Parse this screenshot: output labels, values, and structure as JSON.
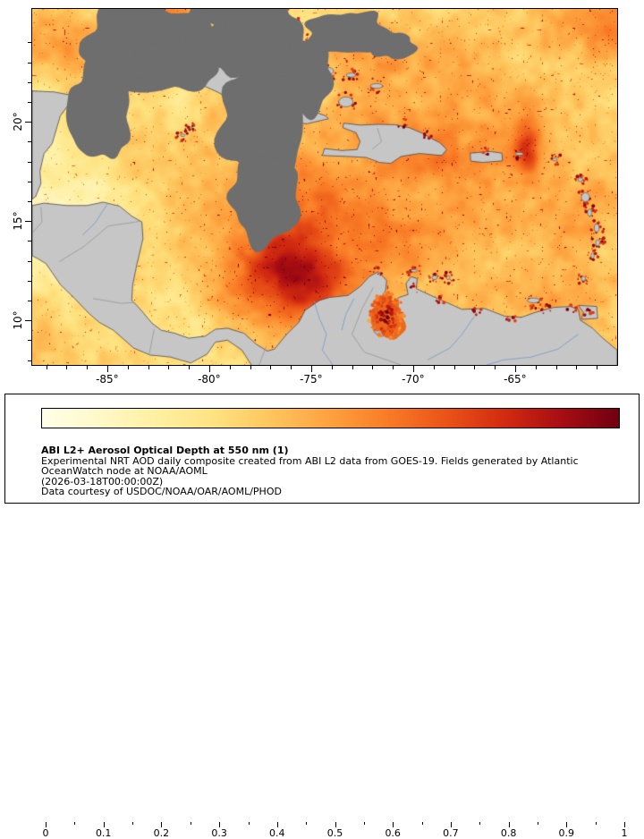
{
  "map": {
    "lat_ticks": [
      {
        "lat": 20,
        "label": "20°"
      },
      {
        "lat": 15,
        "label": "15°"
      },
      {
        "lat": 10,
        "label": "10°"
      }
    ],
    "lon_ticks": [
      {
        "lon": -85,
        "label": "-85°"
      },
      {
        "lon": -80,
        "label": "-80°"
      },
      {
        "lon": -75,
        "label": "-75°"
      },
      {
        "lon": -70,
        "label": "-70°"
      },
      {
        "lon": -65,
        "label": "-65°"
      }
    ],
    "colors": {
      "land": "#c6c6c6",
      "coast": "#4a4a4a",
      "missing": "#6e6e6e",
      "river": "#7d9ec8",
      "lake": "#a9bdd1",
      "border_line": "#8f8f8f"
    }
  },
  "colorbar": {
    "min": 0,
    "max": 1,
    "tick_labels": [
      "0",
      "0.1",
      "0.2",
      "0.3",
      "0.4",
      "0.5",
      "0.6",
      "0.7",
      "0.8",
      "0.9",
      "1"
    ],
    "stops": [
      "#ffffe8",
      "#fff8c8",
      "#fef0a2",
      "#fee27f",
      "#fec45c",
      "#fda13e",
      "#f97b26",
      "#ea5317",
      "#d32b11",
      "#a80d13",
      "#70000f"
    ]
  },
  "legend": {
    "title": "ABI L2+ Aerosol Optical Depth at 550 nm (1)",
    "line1": "Experimental NRT AOD daily composite created from ABI L2 data from GOES-19. Fields generated by Atlantic",
    "line2": "OceanWatch node at NOAA/AOML",
    "timestamp": "(2026-03-18T00:00:00Z)",
    "credit": "Data courtesy of USDOC/NOAA/OAR/AOML/PHOD"
  }
}
